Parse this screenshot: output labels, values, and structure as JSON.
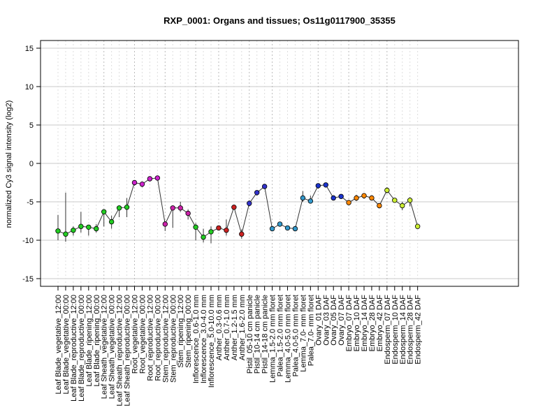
{
  "chart_data": {
    "type": "line",
    "title": "RXP_0001: Organs and tissues; Os11g0117900_35355",
    "ylabel": "normalized Cy3 signal intensity (log2)",
    "xlabel": "",
    "ylim": [
      -16,
      16
    ],
    "yticks": [
      -15,
      -10,
      -5,
      0,
      5,
      10,
      15
    ],
    "grid": true,
    "categories": [
      "Leaf Blade_vegetative_12:00",
      "Leaf Blade_vegetative_00:00",
      "Leaf Blade_reproductive_12:00",
      "Leaf Blade_reproductive_00:00",
      "Leaf Blade_ripening_12:00",
      "Leaf Blade_ripening_00:00",
      "Leaf Sheath_vegetative_12:00",
      "Leaf Sheath_vegetative_00:00",
      "Leaf Sheath_reproductive_12:00",
      "Leaf Sheath_reproductive_00:00",
      "Root_vegetative_12:00",
      "Root_vegetative_00:00",
      "Root_reproductive_12:00",
      "Root_reproductive_00:00",
      "Stem_reproductive_12:00",
      "Stem_reproductive_00:00",
      "Stem_ripening_12:00",
      "Stem_ripening_00:00",
      "Inflorescence_0.6-1.0 mm",
      "Inflorescence_3.0-4.0 mm",
      "Inflorescence_5.0-10.0 mm",
      "Anther_0.3-0.6 mm",
      "Anther_0.7-1.0 mm",
      "Anther_1.2-1.5 mm",
      "Anther_1.6-2.0 mm",
      "Pistil_05-10 cm panicle",
      "Pistil_10-14 cm panicle",
      "Pistil_14-18 cm panicle",
      "Lemma_1.5-2.0 mm floret",
      "Palea_1.5-2.0 mm floret",
      "Lemma_4.0-5.0 mm floret",
      "Palea_4.0-5.0 mm floret",
      "Lemma_7.0- mm floret",
      "Palea_7.0- mm floret",
      "Ovary_01 DAF",
      "Ovary_03 DAF",
      "Ovary_05 DAF",
      "Ovary_07 DAF",
      "Embryo_07 DAF",
      "Embryo_10 DAF",
      "Embryo_14 DAF",
      "Embryo_28 DAF",
      "Embryo_42 DAF",
      "Endosperm_07 DAF",
      "Endosperm_10 DAF",
      "Endosperm_14 DAF",
      "Endosperm_28 DAF",
      "Endosperm_42 DAF"
    ],
    "values": [
      -8.8,
      -9.2,
      -8.7,
      -8.2,
      -8.3,
      -8.5,
      -6.3,
      -7.6,
      -5.8,
      -5.7,
      -2.5,
      -2.7,
      -2.0,
      -1.9,
      -7.9,
      -5.8,
      -5.8,
      -6.5,
      -8.3,
      -9.6,
      -8.9,
      -8.4,
      -8.7,
      -5.7,
      -9.2,
      -5.2,
      -3.8,
      -3.0,
      -8.5,
      -7.9,
      -8.4,
      -8.5,
      -4.5,
      -4.9,
      -2.9,
      -2.8,
      -4.5,
      -4.3,
      -5.1,
      -4.5,
      -4.2,
      -4.5,
      -5.5,
      -3.5,
      -4.8,
      -5.5,
      -4.8,
      -8.2
    ],
    "error_low": [
      -10.0,
      -10.2,
      -9.4,
      -9.0,
      -9.4,
      -9.0,
      -8.2,
      -8.5,
      -7.0,
      -7.0,
      -2.9,
      -3.1,
      -2.3,
      -2.2,
      -8.8,
      -8.4,
      -6.3,
      -7.3,
      -10.0,
      -10.3,
      -10.4,
      -8.7,
      -9.4,
      -6.0,
      -9.8,
      -5.6,
      -4.2,
      -3.3,
      -8.7,
      -8.2,
      -8.6,
      -8.8,
      -5.0,
      -5.2,
      -3.3,
      -3.1,
      -4.7,
      -4.6,
      -5.4,
      -4.9,
      -4.6,
      -4.8,
      -5.8,
      -3.9,
      -5.1,
      -6.1,
      -5.6,
      -8.5
    ],
    "error_high": [
      -6.7,
      -3.8,
      -8.2,
      -6.3,
      -8.0,
      -7.9,
      -6.0,
      -6.8,
      -5.6,
      -4.5,
      -2.2,
      -2.5,
      -1.8,
      -1.6,
      -7.5,
      -5.5,
      -5.0,
      -6.0,
      -7.8,
      -8.5,
      -8.2,
      -8.1,
      -7.3,
      -5.4,
      -8.6,
      -4.8,
      -3.5,
      -2.7,
      -8.2,
      -7.6,
      -8.2,
      -8.2,
      -3.6,
      -4.2,
      -2.6,
      -2.5,
      -4.2,
      -4.1,
      -4.8,
      -4.1,
      -3.9,
      -4.2,
      -5.3,
      -3.1,
      -4.5,
      -5.0,
      -4.4,
      -7.9
    ],
    "point_colors": [
      "#22cc22",
      "#22cc22",
      "#22cc22",
      "#22cc22",
      "#22cc22",
      "#22cc22",
      "#22cc22",
      "#22cc22",
      "#22cc22",
      "#22cc22",
      "#cc22cc",
      "#cc22cc",
      "#cc22cc",
      "#cc22cc",
      "#cc22aa",
      "#cc22aa",
      "#cc22aa",
      "#cc22aa",
      "#22cc22",
      "#22cc22",
      "#22cc22",
      "#cc2222",
      "#cc2222",
      "#cc2222",
      "#cc2222",
      "#3333cc",
      "#3333cc",
      "#3333cc",
      "#3399cc",
      "#3399cc",
      "#3399cc",
      "#3399cc",
      "#3399cc",
      "#3399cc",
      "#1a33cc",
      "#1a33cc",
      "#1a33cc",
      "#1a33cc",
      "#ff8800",
      "#ff8800",
      "#ff8800",
      "#ff8800",
      "#ff8800",
      "#ccee33",
      "#ccee33",
      "#ccee33",
      "#ccee33",
      "#ccee33"
    ],
    "vertical_group_lines_after": [
      5,
      9,
      13,
      17,
      20,
      24,
      27,
      33,
      37,
      42
    ]
  }
}
